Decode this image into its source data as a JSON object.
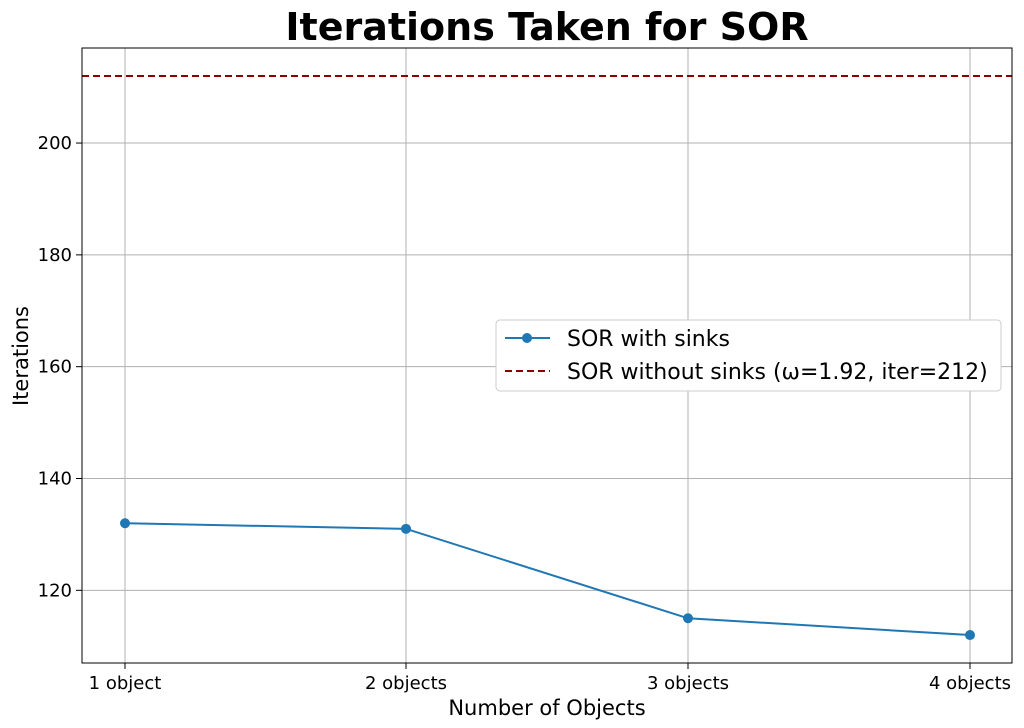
{
  "chart_data": {
    "type": "line",
    "title": "Iterations Taken for SOR",
    "xlabel": "Number of Objects",
    "ylabel": "Iterations",
    "categories": [
      "1 object",
      "2 objects",
      "3 objects",
      "4 objects"
    ],
    "ylim": [
      107,
      217
    ],
    "yticks": [
      120,
      140,
      160,
      180,
      200
    ],
    "grid": true,
    "legend_position": "center-right",
    "series": [
      {
        "name": "SOR with sinks",
        "values": [
          132,
          131,
          115,
          112
        ],
        "color": "#1f77b4",
        "style": "solid",
        "marker": "circle"
      }
    ],
    "reference_lines": [
      {
        "name": "SOR without sinks (ω=1.92, iter=212)",
        "value": 212,
        "color": "#8b0000",
        "style": "dashed"
      }
    ]
  }
}
